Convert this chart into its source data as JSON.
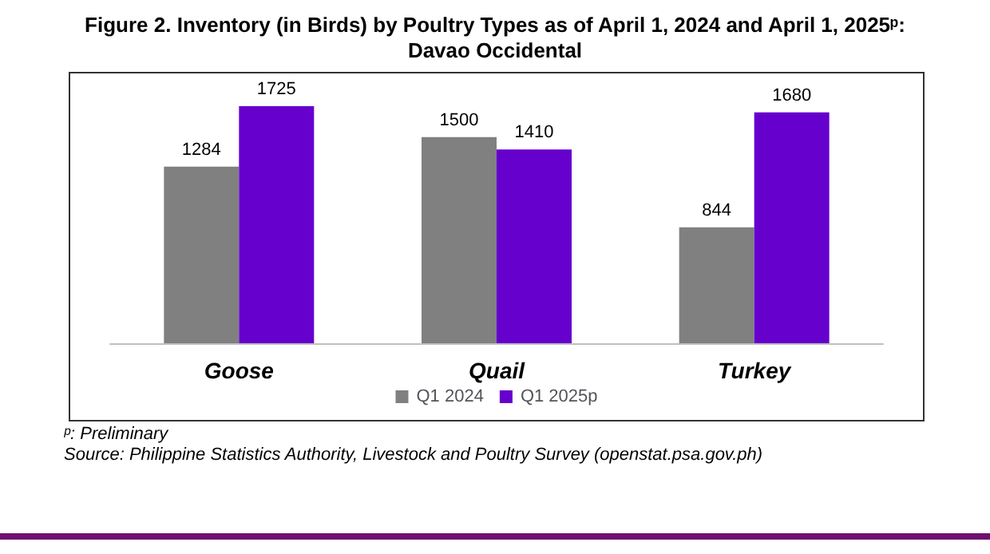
{
  "chart_data": {
    "type": "bar",
    "title": "Figure 2. Inventory (in Birds) by Poultry Types as of April 1, 2024 and April 1, 2025ᵖ:\nDavao Occidental",
    "categories": [
      "Goose",
      "Quail",
      "Turkey"
    ],
    "series": [
      {
        "name": "Q1 2024",
        "color": "#808080",
        "values": [
          1284,
          1500,
          844
        ]
      },
      {
        "name": "Q1 2025p",
        "color": "#6600cc",
        "values": [
          1725,
          1410,
          1680
        ]
      }
    ],
    "data_labels": true,
    "legend": "bottom",
    "annotations": [
      "ᵖ: Preliminary",
      "Source: Philippine Statistics Authority, Livestock and Poultry Survey (openstat.psa.gov.ph)"
    ]
  }
}
